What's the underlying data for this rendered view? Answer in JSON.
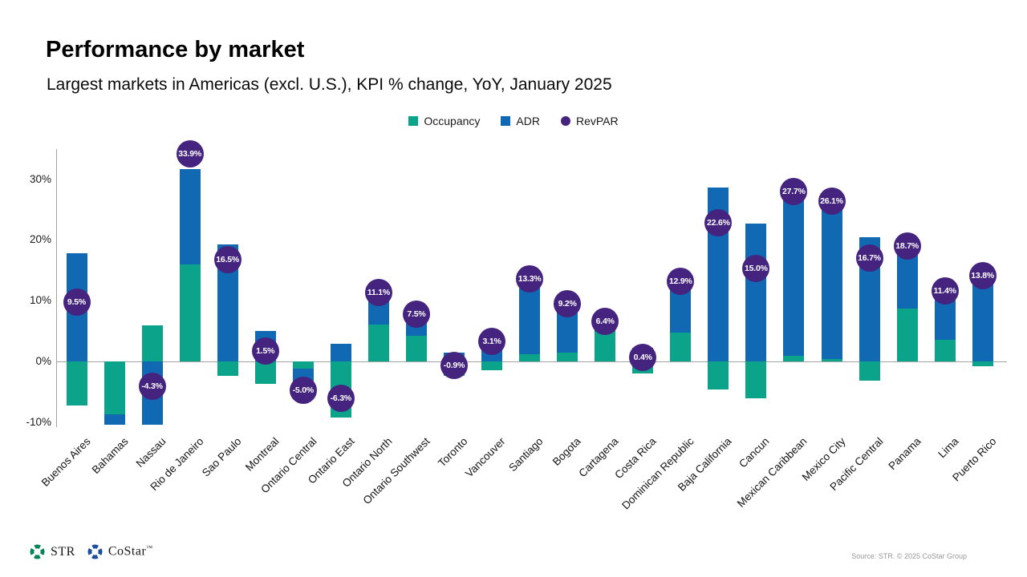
{
  "title": "Performance by market",
  "subtitle": "Largest markets in Americas (excl. U.S.), KPI % change, YoY, January 2025",
  "legend": [
    {
      "label": "Occupancy",
      "color": "#0BA389",
      "shape": "square"
    },
    {
      "label": "ADR",
      "color": "#1168B3",
      "shape": "square"
    },
    {
      "label": "RevPAR",
      "color": "#452480",
      "shape": "circle"
    }
  ],
  "colors": {
    "occupancy": "#0BA389",
    "adr": "#1168B3",
    "revpar_bubble": "#452480",
    "axis_line": "#a3a3a3",
    "str_logo_green": "#00845A",
    "costar_logo_blue": "#1C4E9D"
  },
  "chart_data": {
    "type": "bar",
    "stacked": true,
    "title": "Performance by market",
    "subtitle": "Largest markets in Americas (excl. U.S.), KPI % change, YoY, January 2025",
    "xlabel": "",
    "ylabel": "KPI % change YoY",
    "ylim": [
      -12,
      35
    ],
    "grid": "zero-line-only",
    "legend_position": "top-center",
    "y_ticks": [
      {
        "value": 30,
        "label": "30%"
      },
      {
        "value": 20,
        "label": "20%"
      },
      {
        "value": 10,
        "label": "10%"
      },
      {
        "value": 0,
        "label": "0%"
      },
      {
        "value": -10,
        "label": "-10%"
      }
    ],
    "categories": [
      "Buenos Aires",
      "Bahamas",
      "Nassau",
      "Rio de Janeiro",
      "Sao Paulo",
      "Montreal",
      "Ontario Central",
      "Ontario East",
      "Ontario North",
      "Ontario Southwest",
      "Toronto",
      "Vancouver",
      "Santiago",
      "Bogota",
      "Cartagena",
      "Costa Rica",
      "Dominican Republic",
      "Baja California",
      "Cancun",
      "Mexican Caribbean",
      "Mexico City",
      "Pacific Central",
      "Panama",
      "Lima",
      "Puerto Rico"
    ],
    "series": [
      {
        "name": "Occupancy",
        "values": [
          -7.2,
          -8.7,
          6.0,
          16.0,
          -2.4,
          -3.7,
          -1.2,
          -9.2,
          6.1,
          4.2,
          -2.4,
          -1.4,
          1.2,
          1.5,
          4.9,
          -2.0,
          4.7,
          -4.6,
          -6.1,
          0.9,
          0.4,
          -3.2,
          8.7,
          3.6,
          -0.8
        ]
      },
      {
        "name": "ADR",
        "values": [
          17.8,
          -1.8,
          -10.4,
          15.7,
          19.3,
          5.0,
          -3.9,
          2.9,
          4.7,
          3.2,
          1.5,
          4.6,
          12.0,
          7.6,
          1.4,
          2.2,
          7.8,
          28.6,
          22.7,
          26.6,
          25.6,
          20.5,
          9.2,
          7.5,
          14.7
        ]
      }
    ],
    "revpar_labels": [
      9.5,
      null,
      -4.3,
      33.9,
      16.5,
      1.5,
      -5.0,
      -6.3,
      11.1,
      7.5,
      -0.9,
      3.1,
      13.3,
      9.2,
      6.4,
      0.4,
      12.9,
      22.6,
      15.0,
      27.7,
      26.1,
      16.7,
      18.7,
      11.4,
      13.8
    ]
  },
  "footer": {
    "logos": [
      {
        "name": "STR"
      },
      {
        "name": "CoStar",
        "tm": "™"
      }
    ],
    "source": "Source: STR. © 2025 CoStar Group"
  }
}
